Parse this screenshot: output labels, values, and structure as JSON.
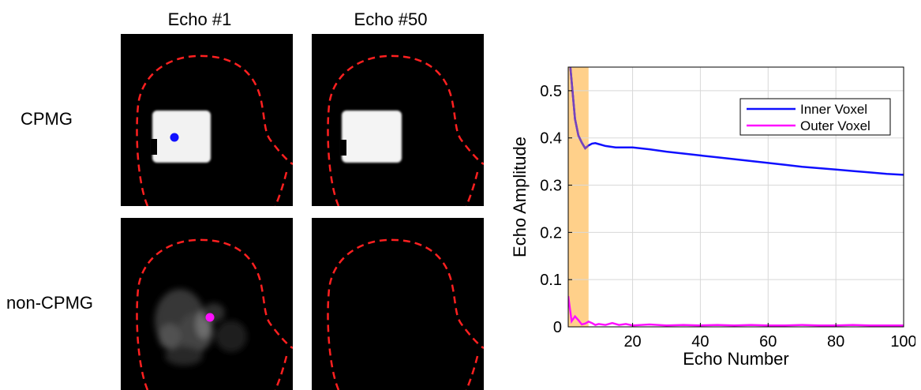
{
  "column_titles": [
    "Echo #1",
    "Echo #50"
  ],
  "row_labels": [
    "CPMG",
    "non-CPMG"
  ],
  "colors": {
    "contour": "#ff2020",
    "inner_voxel": "#1010ff",
    "outer_voxel": "#ff10ff",
    "highlight": "#ffd08a",
    "overlap": "#7744bb"
  },
  "chart_data": {
    "type": "line",
    "xlabel": "Echo Number",
    "ylabel": "Echo Amplitude",
    "xlim": [
      1,
      100
    ],
    "ylim": [
      0,
      0.55
    ],
    "xticks": [
      20,
      40,
      60,
      80,
      100
    ],
    "yticks": [
      0,
      0.1,
      0.2,
      0.3,
      0.4,
      0.5
    ],
    "grid": true,
    "legend_position": "top-right",
    "highlight_span": [
      1,
      7
    ],
    "series": [
      {
        "name": "Inner Voxel",
        "color": "#1010ff",
        "x": [
          1,
          2,
          3,
          4,
          5,
          6,
          7,
          8,
          9,
          10,
          12,
          15,
          20,
          25,
          30,
          35,
          40,
          45,
          50,
          55,
          60,
          65,
          70,
          75,
          80,
          85,
          90,
          95,
          100
        ],
        "y": [
          0.6,
          0.52,
          0.44,
          0.405,
          0.39,
          0.378,
          0.384,
          0.388,
          0.389,
          0.387,
          0.383,
          0.38,
          0.38,
          0.376,
          0.371,
          0.367,
          0.363,
          0.359,
          0.355,
          0.351,
          0.347,
          0.343,
          0.339,
          0.336,
          0.333,
          0.33,
          0.327,
          0.324,
          0.322
        ]
      },
      {
        "name": "Outer Voxel",
        "color": "#ff10ff",
        "x": [
          1,
          2,
          3,
          4,
          5,
          6,
          7,
          8,
          9,
          10,
          12,
          14,
          16,
          18,
          20,
          25,
          30,
          35,
          40,
          45,
          50,
          55,
          60,
          65,
          70,
          75,
          80,
          85,
          90,
          95,
          100
        ],
        "y": [
          0.065,
          0.012,
          0.022,
          0.014,
          0.005,
          0.007,
          0.011,
          0.008,
          0.004,
          0.006,
          0.004,
          0.008,
          0.004,
          0.006,
          0.003,
          0.005,
          0.003,
          0.004,
          0.003,
          0.004,
          0.003,
          0.004,
          0.003,
          0.003,
          0.004,
          0.003,
          0.003,
          0.004,
          0.003,
          0.003,
          0.003
        ]
      }
    ]
  }
}
